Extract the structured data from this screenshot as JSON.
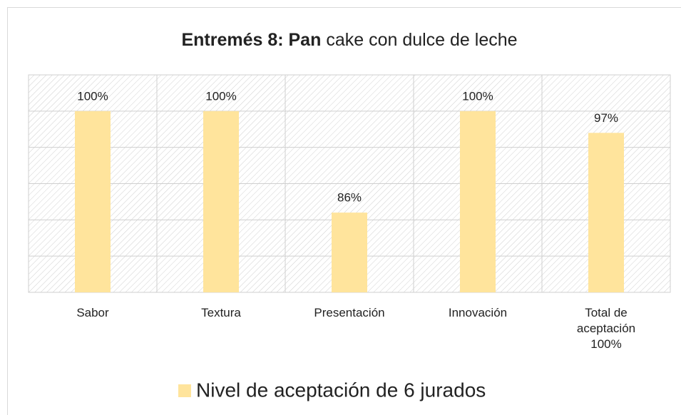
{
  "chart_data": {
    "type": "bar",
    "title": [
      "Entremés 8: Pan",
      "cake con dulce de leche"
    ],
    "categories": [
      "Sabor",
      "Textura",
      "Presentación",
      "Innovación",
      "Total de aceptación 100%"
    ],
    "series": [
      {
        "name": "Nivel de aceptación de 6 jurados",
        "color": "#ffe49c",
        "values": [
          100,
          100,
          86,
          100,
          97
        ],
        "value_labels": [
          "100%",
          "100%",
          "86%",
          "100%",
          "97%"
        ]
      }
    ],
    "ylim": [
      75,
      105
    ],
    "yticks": [
      75,
      80,
      85,
      90,
      95,
      100,
      105
    ],
    "grid": true
  }
}
